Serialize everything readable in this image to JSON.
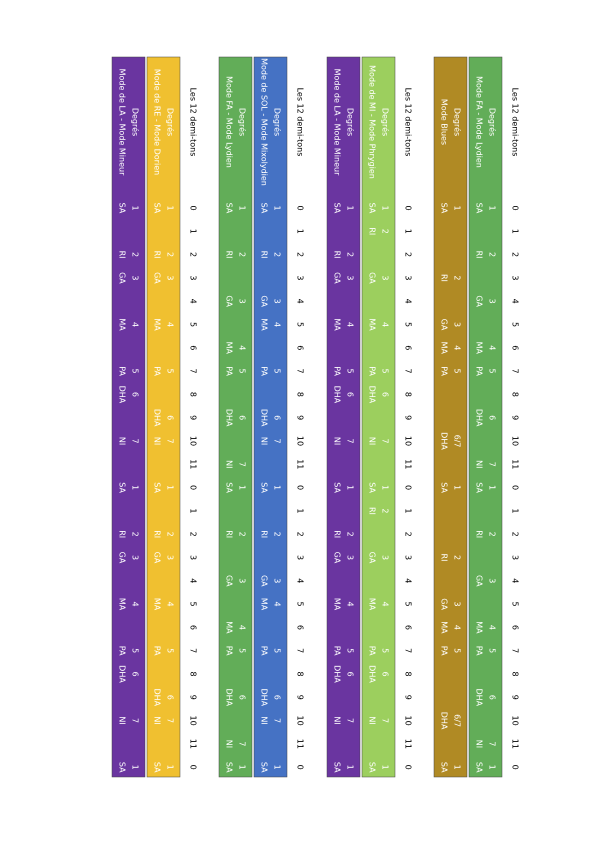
{
  "groups": [
    {
      "header": "Les 12 demi-tons",
      "semitones": [
        0,
        1,
        2,
        3,
        4,
        5,
        6,
        7,
        8,
        9,
        10,
        11,
        0,
        1,
        2,
        3,
        4,
        5,
        6,
        7,
        8,
        9,
        10,
        11,
        0
      ],
      "modes": [
        {
          "label": "Degrés",
          "name": "Mode FA - Mode Lydien",
          "color": "#62ad58",
          "degrees": [
            1,
            null,
            2,
            null,
            3,
            null,
            4,
            5,
            null,
            6,
            null,
            7,
            1,
            null,
            2,
            null,
            3,
            null,
            4,
            5,
            null,
            6,
            null,
            7,
            1
          ],
          "notes": [
            "SA",
            null,
            "RI",
            null,
            "GA",
            null,
            "MA",
            "PA",
            null,
            "DHA",
            null,
            "NI",
            "SA",
            null,
            "RI",
            null,
            "GA",
            null,
            "MA",
            "PA",
            null,
            "DHA",
            null,
            "NI",
            "SA"
          ]
        },
        {
          "label": "Degrés",
          "name": "Mode Blues",
          "color": "#b08a24",
          "degrees": [
            1,
            null,
            null,
            2,
            null,
            3,
            4,
            5,
            null,
            null,
            "6/7",
            null,
            1,
            null,
            null,
            2,
            null,
            3,
            4,
            5,
            null,
            null,
            "6/7",
            null,
            1
          ],
          "notes": [
            "SA",
            null,
            null,
            "RI",
            null,
            "GA",
            "MA",
            "PA",
            null,
            null,
            "DHA",
            null,
            "SA",
            null,
            null,
            "RI",
            null,
            "GA",
            "MA",
            "PA",
            null,
            null,
            "DHA",
            null,
            "SA"
          ]
        }
      ]
    },
    {
      "header": "Les 12 demi-tons",
      "semitones": [
        0,
        1,
        2,
        3,
        4,
        5,
        6,
        7,
        8,
        9,
        10,
        11,
        0,
        1,
        2,
        3,
        4,
        5,
        6,
        7,
        8,
        9,
        10,
        11,
        0
      ],
      "modes": [
        {
          "label": "Degrés",
          "name": "Mode de MI - Mode Phrygien",
          "color": "#9ccf5e",
          "degrees": [
            1,
            2,
            null,
            3,
            null,
            4,
            null,
            5,
            6,
            null,
            7,
            null,
            1,
            2,
            null,
            3,
            null,
            4,
            null,
            5,
            6,
            null,
            7,
            null,
            1
          ],
          "notes": [
            "SA",
            "RI",
            null,
            "GA",
            null,
            "MA",
            null,
            "PA",
            "DHA",
            null,
            "NI",
            null,
            "SA",
            "RI",
            null,
            "GA",
            null,
            "MA",
            null,
            "PA",
            "DHA",
            null,
            "NI",
            null,
            "SA"
          ]
        },
        {
          "label": "Degrés",
          "name": "Mode de LA - Mode Mineur",
          "color": "#6a35a0",
          "degrees": [
            1,
            null,
            2,
            3,
            null,
            4,
            null,
            5,
            6,
            null,
            7,
            null,
            1,
            null,
            2,
            3,
            null,
            4,
            null,
            5,
            6,
            null,
            7,
            null,
            1
          ],
          "notes": [
            "SA",
            null,
            "RI",
            "GA",
            null,
            "MA",
            null,
            "PA",
            "DHA",
            null,
            "NI",
            null,
            "SA",
            null,
            "RI",
            "GA",
            null,
            "MA",
            null,
            "PA",
            "DHA",
            null,
            "NI",
            null,
            "SA"
          ]
        }
      ]
    },
    {
      "header": "Les 12 demi-tons",
      "semitones": [
        0,
        1,
        2,
        3,
        4,
        5,
        6,
        7,
        8,
        9,
        10,
        11,
        0,
        1,
        2,
        3,
        4,
        5,
        6,
        7,
        8,
        9,
        10,
        11,
        0
      ],
      "modes": [
        {
          "label": "Degrés",
          "name": "Mode de SOL - Mode Mixolydien",
          "color": "#4572c4",
          "degrees": [
            1,
            null,
            2,
            null,
            3,
            4,
            null,
            5,
            null,
            6,
            7,
            null,
            1,
            null,
            2,
            null,
            3,
            4,
            null,
            5,
            null,
            6,
            7,
            null,
            1
          ],
          "notes": [
            "SA",
            null,
            "RI",
            null,
            "GA",
            "MA",
            null,
            "PA",
            null,
            "DHA",
            "NI",
            null,
            "SA",
            null,
            "RI",
            null,
            "GA",
            "MA",
            null,
            "PA",
            null,
            "DHA",
            "NI",
            null,
            "SA"
          ]
        },
        {
          "label": "Degrés",
          "name": "Mode FA - Mode Lydien",
          "color": "#62ad58",
          "degrees": [
            1,
            null,
            2,
            null,
            3,
            null,
            4,
            5,
            null,
            6,
            null,
            7,
            1,
            null,
            2,
            null,
            3,
            null,
            4,
            5,
            null,
            6,
            null,
            7,
            1
          ],
          "notes": [
            "SA",
            null,
            "RI",
            null,
            "GA",
            null,
            "MA",
            "PA",
            null,
            "DHA",
            null,
            "NI",
            "SA",
            null,
            "RI",
            null,
            "GA",
            null,
            "MA",
            "PA",
            null,
            "DHA",
            null,
            "NI",
            "SA"
          ]
        }
      ]
    },
    {
      "header": "Les 12 demi-tons",
      "semitones": [
        0,
        1,
        2,
        3,
        4,
        5,
        6,
        7,
        8,
        9,
        10,
        11,
        0,
        1,
        2,
        3,
        4,
        5,
        6,
        7,
        8,
        9,
        10,
        11,
        0
      ],
      "modes": [
        {
          "label": "Degrés",
          "name": "Mode de RE - Mode Dorien",
          "color": "#f0c030",
          "degrees": [
            1,
            null,
            2,
            3,
            null,
            4,
            null,
            5,
            null,
            6,
            7,
            null,
            1,
            null,
            2,
            3,
            null,
            4,
            null,
            5,
            null,
            6,
            7,
            null,
            1
          ],
          "notes": [
            "SA",
            null,
            "RI",
            "GA",
            null,
            "MA",
            null,
            "PA",
            null,
            "DHA",
            "NI",
            null,
            "SA",
            null,
            "RI",
            "GA",
            null,
            "MA",
            null,
            "PA",
            null,
            "DHA",
            "NI",
            null,
            "SA"
          ]
        },
        {
          "label": "Degrés",
          "name": "Mode de LA - Mode Mineur",
          "color": "#6a35a0",
          "degrees": [
            1,
            null,
            2,
            3,
            null,
            4,
            null,
            5,
            6,
            null,
            7,
            null,
            1,
            null,
            2,
            3,
            null,
            4,
            null,
            5,
            6,
            null,
            7,
            null,
            1
          ],
          "notes": [
            "SA",
            null,
            "RI",
            "GA",
            null,
            "MA",
            null,
            "PA",
            "DHA",
            null,
            "NI",
            null,
            "SA",
            null,
            "RI",
            "GA",
            null,
            "MA",
            null,
            "PA",
            "DHA",
            null,
            "NI",
            null,
            "SA"
          ]
        }
      ]
    }
  ]
}
